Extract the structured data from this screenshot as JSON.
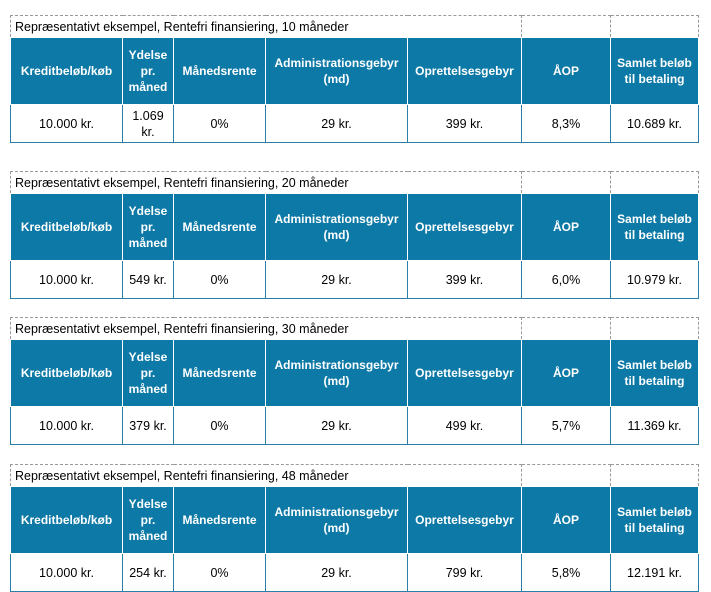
{
  "headers": [
    "Kreditbeløb/køb",
    "Ydelse pr. måned",
    "Månedsrente",
    "Administrationsgebyr (md)",
    "Oprettelsesgebyr",
    "ÅOP",
    "Samlet beløb til betaling"
  ],
  "examples": [
    {
      "title": "Repræsentativt eksempel, Rentefri finansiering, 10 måneder",
      "values": [
        "10.000 kr.",
        "1.069 kr.",
        "0%",
        "29 kr.",
        "399 kr.",
        "8,3%",
        "10.689 kr."
      ]
    },
    {
      "title": "Repræsentativt eksempel, Rentefri finansiering, 20 måneder",
      "values": [
        "10.000 kr.",
        "549 kr.",
        "0%",
        "29 kr.",
        "399 kr.",
        "6,0%",
        "10.979 kr."
      ]
    },
    {
      "title": "Repræsentativt eksempel, Rentefri finansiering, 30 måneder",
      "values": [
        "10.000 kr.",
        "379 kr.",
        "0%",
        "29 kr.",
        "499 kr.",
        "5,7%",
        "11.369 kr."
      ]
    },
    {
      "title": "Repræsentativt eksempel, Rentefri finansiering, 48 måneder",
      "values": [
        "10.000 kr.",
        "254 kr.",
        "0%",
        "29 kr.",
        "799 kr.",
        "5,8%",
        "12.191 kr."
      ]
    }
  ]
}
